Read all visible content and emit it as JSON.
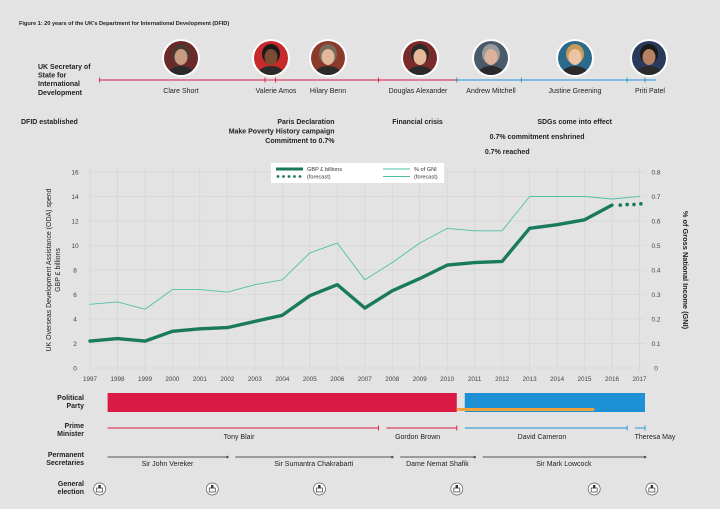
{
  "figure_title": "Figure 1: 20 years of the UK's Department for International Development (DFID)",
  "secretaries_label": "UK Secretary of State for International Development",
  "secretaries": [
    {
      "name": "Clare Short",
      "start": 1997.35,
      "end": 2003.37,
      "party": "labour"
    },
    {
      "name": "Valerie Amos",
      "start": 2003.37,
      "end": 2003.75,
      "party": "labour"
    },
    {
      "name": "Hilary Benn",
      "start": 2003.75,
      "end": 2007.5,
      "party": "labour"
    },
    {
      "name": "Douglas Alexander",
      "start": 2007.5,
      "end": 2010.35,
      "party": "labour"
    },
    {
      "name": "Andrew Mitchell",
      "start": 2010.35,
      "end": 2012.7,
      "party": "conservative"
    },
    {
      "name": "Justine Greening",
      "start": 2012.7,
      "end": 2016.55,
      "party": "conservative"
    },
    {
      "name": "Priti Patel",
      "start": 2016.55,
      "end": 2017.6,
      "party": "conservative"
    }
  ],
  "events": [
    {
      "lines": [
        "DFID established"
      ],
      "x": 1997.35,
      "anchor": "start"
    },
    {
      "lines": [
        "Paris Declaration",
        "Make Poverty History campaign",
        "Commitment to 0.7%"
      ],
      "x": 2005.9,
      "anchor": "end"
    },
    {
      "lines": [
        "Financial crisis"
      ],
      "x": 2008.0,
      "anchor": "start"
    },
    {
      "lines": [
        "SDGs come into effect"
      ],
      "x": 2016.0,
      "anchor": "end"
    },
    {
      "lines": [
        "0.7% commitment enshrined"
      ],
      "x": 2015.0,
      "anchor": "end"
    },
    {
      "lines": [
        "0.7% reached"
      ],
      "x": 2013.0,
      "anchor": "end"
    }
  ],
  "chart_data": {
    "type": "line",
    "x": [
      1997,
      1998,
      1999,
      2000,
      2001,
      2002,
      2003,
      2004,
      2005,
      2006,
      2007,
      2008,
      2009,
      2010,
      2011,
      2012,
      2013,
      2014,
      2015,
      2016,
      2017
    ],
    "xlim": [
      1997,
      2017.2
    ],
    "ylabel_left": "UK Overseas Development Assistance (ODA) spend GBP £ billions",
    "ylabel_right": "% of Gross National Income (GNI)",
    "ylim_left": [
      0,
      16
    ],
    "ylim_right": [
      0,
      0.8
    ],
    "yticks_left": [
      "0",
      "2",
      "4",
      "6",
      "8",
      "10",
      "12",
      "14",
      "16"
    ],
    "yticks_right": [
      "0",
      "0.1",
      "0.2",
      "0.3",
      "0.4",
      "0.5",
      "0.6",
      "0.7",
      "0.8"
    ],
    "grid": true,
    "legend_position": "top-center",
    "series": [
      {
        "name": "GBP £ billions",
        "axis": "left",
        "color": "#1a7a5e",
        "x": [
          1997,
          1998,
          1999,
          2000,
          2001,
          2002,
          2003,
          2004,
          2005,
          2006,
          2007,
          2008,
          2009,
          2010,
          2011,
          2012,
          2013,
          2014,
          2015,
          2016
        ],
        "values": [
          2.2,
          2.4,
          2.2,
          3.0,
          3.2,
          3.3,
          3.8,
          4.3,
          5.9,
          6.8,
          4.9,
          6.3,
          7.3,
          8.4,
          8.6,
          8.7,
          11.4,
          11.7,
          12.1,
          13.3
        ]
      },
      {
        "name": "(forecast)",
        "axis": "left",
        "color": "#1a7a5e",
        "style": "dotted",
        "x": [
          2016.3,
          2016.55,
          2016.8,
          2017.05
        ],
        "values": [
          13.3,
          13.35,
          13.35,
          13.4
        ]
      },
      {
        "name": "% of GNI",
        "axis": "right",
        "color": "#4fc0a8",
        "x": [
          1997,
          1998,
          1999,
          2000,
          2001,
          2002,
          2003,
          2004,
          2005,
          2006,
          2007,
          2008,
          2009,
          2010,
          2011,
          2012,
          2013,
          2014,
          2015,
          2016
        ],
        "values": [
          0.26,
          0.27,
          0.24,
          0.32,
          0.32,
          0.31,
          0.34,
          0.36,
          0.47,
          0.51,
          0.36,
          0.43,
          0.51,
          0.57,
          0.56,
          0.56,
          0.7,
          0.7,
          0.7,
          0.69
        ]
      },
      {
        "name": "(forecast)",
        "axis": "right",
        "color": "#4fc0a8",
        "style": "thin",
        "x": [
          2016,
          2017
        ],
        "values": [
          0.69,
          0.7
        ]
      }
    ]
  },
  "legend": [
    {
      "label": "GBP £ billions",
      "style": "thick",
      "color": "#1a7a5e"
    },
    {
      "label": "(forecast)",
      "style": "dotted",
      "color": "#1a7a5e"
    },
    {
      "label": "% of GNI",
      "style": "thin",
      "color": "#4fc0a8"
    },
    {
      "label": "(forecast)",
      "style": "thin",
      "color": "#4fc0a8"
    }
  ],
  "party_label": "Political Party",
  "party_colors": {
    "labour": "#d91a45",
    "conservative": "#1e90d6",
    "libdem": "#f2a23a"
  },
  "parties": [
    {
      "party": "labour",
      "start": 1997.35,
      "end": 2010.35
    },
    {
      "party": "conservative",
      "start": 2010.35,
      "end": 2017.2
    },
    {
      "party": "libdem",
      "start": 2010.35,
      "end": 2015.35,
      "band": "bottom"
    }
  ],
  "pm_label": "Prime Minister",
  "prime_ministers": [
    {
      "name": "Tony Blair",
      "start": 1997.35,
      "end": 2007.5,
      "party": "labour"
    },
    {
      "name": "Gordon Brown",
      "start": 2007.5,
      "end": 2010.35,
      "party": "labour"
    },
    {
      "name": "David Cameron",
      "start": 2010.35,
      "end": 2016.55,
      "party": "conservative"
    },
    {
      "name": "Theresa May",
      "start": 2016.55,
      "end": 2017.2,
      "party": "conservative"
    }
  ],
  "ps_label": "Permanent Secretaries",
  "permanent_secretaries": [
    {
      "name": "Sir John Vereker",
      "start": 1997.35,
      "end": 2002.0
    },
    {
      "name": "Sir Sumantra Chakrabarti",
      "start": 2002.0,
      "end": 2008.0
    },
    {
      "name": "Dame Nemat Shafik",
      "start": 2008.0,
      "end": 2011.0
    },
    {
      "name": "Sir Mark Lowcock",
      "start": 2011.0,
      "end": 2017.2
    }
  ],
  "election_label": "General election",
  "elections": [
    1997.35,
    2001.45,
    2005.35,
    2010.35,
    2015.35,
    2017.45
  ]
}
